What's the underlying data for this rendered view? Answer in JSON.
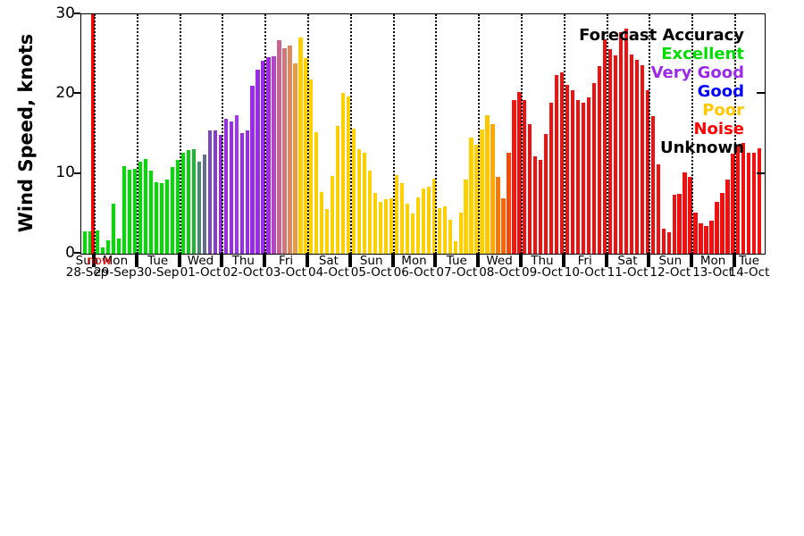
{
  "chart_data": {
    "type": "bar",
    "title": "",
    "ylabel": "Wind Speed, knots",
    "xlabel": "",
    "ylim": [
      0,
      30
    ],
    "yticks": [
      0,
      10,
      20,
      30
    ],
    "grid": "vertical dotted lines at each day boundary",
    "legend_position": "top-right inside plot, text-only right-aligned",
    "legend": {
      "title": "Forecast Accuracy",
      "title_color": "#000000",
      "entries": [
        {
          "label": "Excellent",
          "color": "#00dd00"
        },
        {
          "label": "Very Good",
          "color": "#9b2be8"
        },
        {
          "label": "Good",
          "color": "#0000ff"
        },
        {
          "label": "Poor",
          "color": "#ffc800"
        },
        {
          "label": "Noise",
          "color": "#ff0000"
        },
        {
          "label": "Unknown",
          "color": "#000000"
        }
      ]
    },
    "now_marker": {
      "label": "now",
      "color": "#ff0000",
      "at": "29-Sep 00:00"
    },
    "bar_interval_hours": 3,
    "days": [
      {
        "day": "Sun",
        "date": "28-Sep",
        "values": [
          2.8,
          2.8
        ],
        "colors": [
          "#00dd00",
          "#00dd00"
        ]
      },
      {
        "day": "Mon",
        "date": "29-Sep",
        "values": [
          2.9,
          0.8,
          1.7,
          6.3,
          1.9,
          11.0,
          10.5,
          10.6
        ],
        "colors": [
          "#00dd00",
          "#00dd00",
          "#00dd00",
          "#00dd00",
          "#00dd00",
          "#00dd00",
          "#00dd00",
          "#00dd00"
        ]
      },
      {
        "day": "Tue",
        "date": "30-Sep",
        "values": [
          11.5,
          11.9,
          10.4,
          9.0,
          8.8,
          9.3,
          10.9,
          11.7
        ],
        "colors": [
          "#00dd00",
          "#00dd00",
          "#00dd00",
          "#00dd00",
          "#00dd00",
          "#00dd00",
          "#00dd00",
          "#00dd00"
        ]
      },
      {
        "day": "Wed",
        "date": "01-Oct",
        "values": [
          12.7,
          13.0,
          13.1,
          11.5,
          12.4,
          15.4,
          15.4,
          14.9
        ],
        "colors": [
          "#00dd00",
          "#10ca18",
          "#20b730",
          "#48886c",
          "#606c90",
          "#8046c0",
          "#883ccc",
          "#9829e4"
        ]
      },
      {
        "day": "Thu",
        "date": "02-Oct",
        "values": [
          16.9,
          16.6,
          17.4,
          15.1,
          15.5,
          21.0,
          23.1,
          24.2
        ],
        "colors": [
          "#9b2be8",
          "#9b2be8",
          "#a335ec",
          "#9b2be8",
          "#9b2be8",
          "#9b2be8",
          "#9b2be8",
          "#9b2be8"
        ]
      },
      {
        "day": "Fri",
        "date": "03-Oct",
        "values": [
          24.6,
          24.7,
          26.8,
          25.7,
          26.1,
          23.9,
          27.1,
          24.5
        ],
        "colors": [
          "#a129e2",
          "#b343c0",
          "#c66690",
          "#d07878",
          "#d98a60",
          "#e39b48",
          "#ffd000",
          "#ffd000"
        ]
      },
      {
        "day": "Sat",
        "date": "04-Oct",
        "values": [
          21.8,
          15.2,
          7.7,
          5.6,
          9.7,
          16.0,
          20.2,
          19.7
        ],
        "colors": [
          "#ffd000",
          "#ffd000",
          "#ffd000",
          "#ffd000",
          "#ffd000",
          "#ffd000",
          "#ffd000",
          "#ffd000"
        ]
      },
      {
        "day": "Sun",
        "date": "05-Oct",
        "values": [
          15.7,
          13.1,
          12.6,
          10.4,
          7.6,
          6.5,
          6.8,
          6.9
        ],
        "colors": [
          "#ffd000",
          "#ffd000",
          "#ffd000",
          "#ffd000",
          "#ffd000",
          "#ffd000",
          "#ffd000",
          "#ffd000"
        ]
      },
      {
        "day": "Mon",
        "date": "06-Oct",
        "values": [
          9.8,
          8.9,
          6.3,
          5.0,
          7.1,
          8.2,
          8.4,
          9.4
        ],
        "colors": [
          "#ffd000",
          "#ffd000",
          "#ffd000",
          "#ffd000",
          "#ffd000",
          "#ffd000",
          "#ffd000",
          "#ffd000"
        ]
      },
      {
        "day": "Tue",
        "date": "07-Oct",
        "values": [
          5.7,
          5.9,
          4.3,
          1.6,
          5.2,
          9.3,
          14.6,
          13.7
        ],
        "colors": [
          "#ffd000",
          "#ffd000",
          "#ffd000",
          "#ffd000",
          "#ffd000",
          "#ffd000",
          "#ffd000",
          "#ffd000"
        ]
      },
      {
        "day": "Wed",
        "date": "08-Oct",
        "values": [
          15.6,
          17.3,
          16.2,
          9.6,
          6.9,
          12.7,
          19.2,
          20.3
        ],
        "colors": [
          "#ffd000",
          "#fec601",
          "#fcaa03",
          "#f77a08",
          "#f66709",
          "#f34a0c",
          "#f01b10",
          "#f01010"
        ]
      },
      {
        "day": "Thu",
        "date": "09-Oct",
        "values": [
          19.3,
          16.2,
          12.2,
          11.7,
          15.0,
          18.9,
          22.4,
          22.7
        ],
        "colors": [
          "#f01010",
          "#f01010",
          "#f01010",
          "#f01010",
          "#f01010",
          "#f01010",
          "#f01010",
          "#f01010"
        ]
      },
      {
        "day": "Fri",
        "date": "10-Oct",
        "values": [
          21.2,
          20.5,
          19.2,
          18.9,
          19.6,
          21.4,
          23.5,
          26.9
        ],
        "colors": [
          "#f01010",
          "#f01010",
          "#f01010",
          "#f01010",
          "#f01010",
          "#f01010",
          "#f01010",
          "#f01010"
        ]
      },
      {
        "day": "Sat",
        "date": "11-Oct",
        "values": [
          25.6,
          24.8,
          27.8,
          28.2,
          25.0,
          24.3,
          23.6,
          20.5
        ],
        "colors": [
          "#f01010",
          "#f01010",
          "#f01010",
          "#f01010",
          "#f01010",
          "#f01010",
          "#f01010",
          "#f01010"
        ]
      },
      {
        "day": "Sun",
        "date": "12-Oct",
        "values": [
          17.2,
          11.2,
          3.1,
          2.7,
          7.4,
          7.5,
          10.2,
          9.6
        ],
        "colors": [
          "#f01010",
          "#f01010",
          "#f01010",
          "#f01010",
          "#f01010",
          "#f01010",
          "#f01010",
          "#f01010"
        ]
      },
      {
        "day": "Mon",
        "date": "13-Oct",
        "values": [
          5.2,
          3.8,
          3.5,
          4.1,
          6.5,
          7.6,
          9.3,
          12.5
        ],
        "colors": [
          "#f01010",
          "#f01010",
          "#f01010",
          "#f01010",
          "#f01010",
          "#f01010",
          "#f01010",
          "#f01010"
        ]
      },
      {
        "day": "Tue",
        "date": "14-Oct",
        "values": [
          13.6,
          13.9,
          12.6,
          12.6,
          13.2
        ],
        "colors": [
          "#f01010",
          "#f01010",
          "#f01010",
          "#f01010",
          "#f01010"
        ]
      }
    ]
  }
}
